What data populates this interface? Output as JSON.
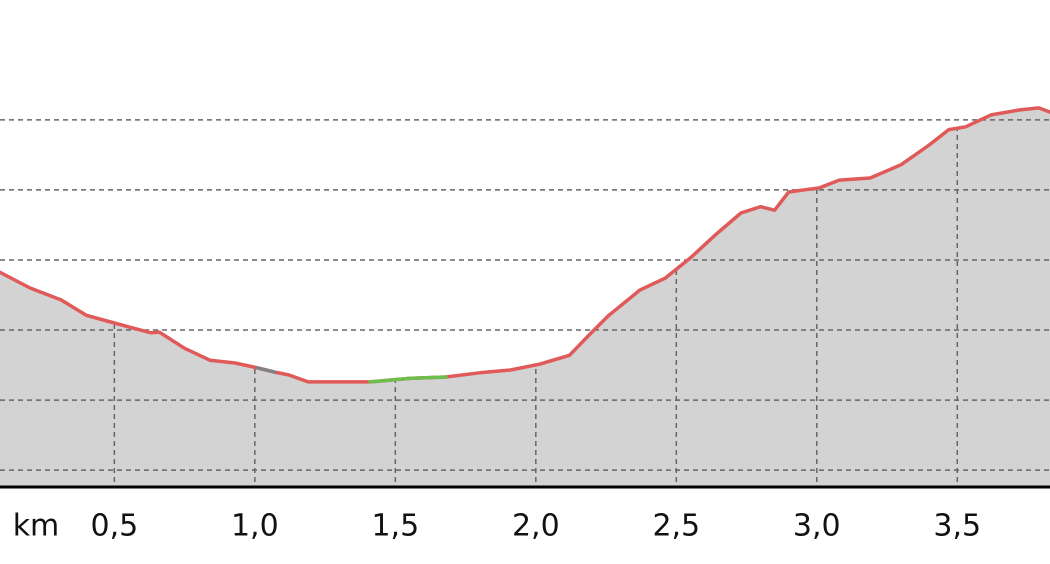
{
  "chart_data": {
    "type": "area",
    "xlabel": "km",
    "x": [
      0.09,
      0.2,
      0.31,
      0.4,
      0.5,
      0.63,
      0.66,
      0.75,
      0.84,
      0.93,
      1.01,
      1.07,
      1.12,
      1.19,
      1.3,
      1.41,
      1.55,
      1.68,
      1.8,
      1.91,
      2.01,
      2.12,
      2.19,
      2.26,
      2.37,
      2.46,
      2.55,
      2.64,
      2.73,
      2.8,
      2.85,
      2.9,
      3.01,
      3.08,
      3.19,
      3.3,
      3.4,
      3.47,
      3.53,
      3.62,
      3.72,
      3.79,
      3.83
    ],
    "series": [
      {
        "color": "#e05a5a",
        "values": [
          12.83,
          12.6,
          12.43,
          12.21,
          12.1,
          11.96,
          11.97,
          11.74,
          11.57,
          11.53,
          11.46,
          11.4,
          11.36,
          11.26,
          11.26,
          11.26,
          11.31,
          11.33,
          11.39,
          11.43,
          11.51,
          11.64,
          11.93,
          12.21,
          12.57,
          12.74,
          13.03,
          13.36,
          13.67,
          13.76,
          13.71,
          13.97,
          14.03,
          14.14,
          14.17,
          14.36,
          14.64,
          14.86,
          14.9,
          15.07,
          15.14,
          15.17,
          15.11
        ]
      },
      {
        "color": "#808080",
        "values": [
          null,
          null,
          null,
          null,
          null,
          null,
          null,
          null,
          null,
          null,
          11.46,
          11.4,
          null,
          null,
          null,
          null,
          null,
          null,
          null,
          null,
          null,
          null,
          null,
          null,
          null,
          null,
          null,
          null,
          null,
          null,
          null,
          null,
          null,
          null,
          null,
          null,
          null,
          null,
          null,
          null,
          null,
          null,
          null
        ]
      },
      {
        "color": "#6cbf4a",
        "values": [
          null,
          null,
          null,
          null,
          null,
          null,
          null,
          null,
          null,
          null,
          null,
          null,
          null,
          null,
          null,
          11.26,
          11.31,
          11.33,
          null,
          null,
          null,
          null,
          null,
          null,
          null,
          null,
          null,
          null,
          null,
          null,
          null,
          null,
          null,
          null,
          null,
          null,
          null,
          null,
          null,
          null,
          null,
          null,
          null
        ]
      }
    ],
    "fill_color": "#d3d3d3",
    "xlim": [
      0.093,
      3.83
    ],
    "ylim": [
      9.76,
      16.71
    ],
    "xticks": [
      {
        "value": 0.5,
        "label": "0,5"
      },
      {
        "value": 1.0,
        "label": "1,0"
      },
      {
        "value": 1.5,
        "label": "1,5"
      },
      {
        "value": 2.0,
        "label": "2,0"
      },
      {
        "value": 2.5,
        "label": "2,5"
      },
      {
        "value": 3.0,
        "label": "3,0"
      },
      {
        "value": 3.5,
        "label": "3,5"
      }
    ],
    "yticks": [
      10,
      11,
      12,
      13,
      14,
      15
    ],
    "grid": true
  }
}
